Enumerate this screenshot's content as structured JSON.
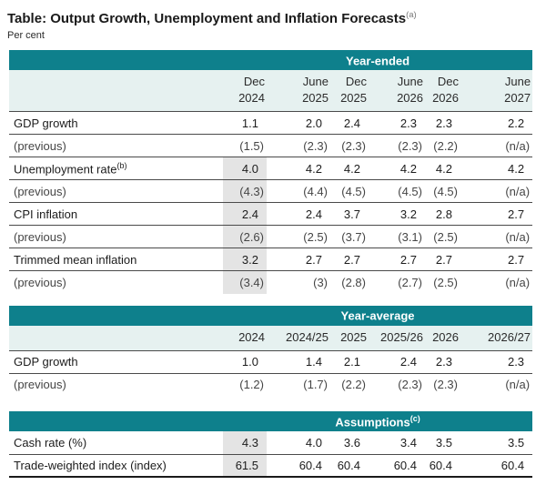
{
  "title": "Table: Output Growth, Unemployment and Inflation Forecasts",
  "title_note": "(a)",
  "subtitle": "Per cent",
  "colors": {
    "teal": "#0E808C",
    "header_row_bg": "#E6F1F0",
    "shaded_cell_bg": "#E4E4E4",
    "rule": "#4A4A4A"
  },
  "tables": [
    {
      "id": "year_ended",
      "header": "Year-ended",
      "header_note": "",
      "columns": [
        [
          "Dec",
          "2024"
        ],
        [
          "June",
          "2025"
        ],
        [
          "Dec",
          "2025"
        ],
        [
          "June",
          "2026"
        ],
        [
          "Dec",
          "2026"
        ],
        [
          "June",
          "2027"
        ]
      ],
      "rows": [
        {
          "label": "GDP growth",
          "note": "",
          "previous": false,
          "shaded_first": false,
          "values": [
            "1.1",
            "2.0",
            "2.4",
            "2.3",
            "2.3",
            "2.2"
          ]
        },
        {
          "label": "(previous)",
          "note": "",
          "previous": true,
          "shaded_first": false,
          "values": [
            "(1.5)",
            "(2.3)",
            "(2.3)",
            "(2.3)",
            "(2.2)",
            "(n/a)"
          ]
        },
        {
          "label": "Unemployment rate",
          "note": "(b)",
          "previous": false,
          "shaded_first": true,
          "values": [
            "4.0",
            "4.2",
            "4.2",
            "4.2",
            "4.2",
            "4.2"
          ]
        },
        {
          "label": "(previous)",
          "note": "",
          "previous": true,
          "shaded_first": true,
          "values": [
            "(4.3)",
            "(4.4)",
            "(4.5)",
            "(4.5)",
            "(4.5)",
            "(n/a)"
          ]
        },
        {
          "label": "CPI inflation",
          "note": "",
          "previous": false,
          "shaded_first": true,
          "values": [
            "2.4",
            "2.4",
            "3.7",
            "3.2",
            "2.8",
            "2.7"
          ]
        },
        {
          "label": "(previous)",
          "note": "",
          "previous": true,
          "shaded_first": true,
          "values": [
            "(2.6)",
            "(2.5)",
            "(3.7)",
            "(3.1)",
            "(2.5)",
            "(n/a)"
          ]
        },
        {
          "label": "Trimmed mean inflation",
          "note": "",
          "previous": false,
          "shaded_first": true,
          "values": [
            "3.2",
            "2.7",
            "2.7",
            "2.7",
            "2.7",
            "2.7"
          ]
        },
        {
          "label": "(previous)",
          "note": "",
          "previous": true,
          "shaded_first": true,
          "values": [
            "(3.4)",
            "(3)",
            "(2.8)",
            "(2.7)",
            "(2.5)",
            "(n/a)"
          ]
        }
      ]
    },
    {
      "id": "year_average",
      "header": "Year-average",
      "header_note": "",
      "columns": [
        [
          "2024"
        ],
        [
          "2024/25"
        ],
        [
          "2025"
        ],
        [
          "2025/26"
        ],
        [
          "2026"
        ],
        [
          "2026/27"
        ]
      ],
      "rows": [
        {
          "label": "GDP growth",
          "note": "",
          "previous": false,
          "shaded_first": false,
          "values": [
            "1.0",
            "1.4",
            "2.1",
            "2.4",
            "2.3",
            "2.3"
          ]
        },
        {
          "label": "(previous)",
          "note": "",
          "previous": true,
          "shaded_first": false,
          "values": [
            "(1.2)",
            "(1.7)",
            "(2.2)",
            "(2.3)",
            "(2.3)",
            "(n/a)"
          ]
        }
      ]
    },
    {
      "id": "assumptions",
      "header": "Assumptions",
      "header_note": "(c)",
      "columns": [],
      "rows": [
        {
          "label": "Cash rate (%)",
          "note": "",
          "previous": false,
          "shaded_first": true,
          "values": [
            "4.3",
            "4.0",
            "3.6",
            "3.4",
            "3.5",
            "3.5"
          ]
        },
        {
          "label": "Trade-weighted index (index)",
          "note": "",
          "previous": false,
          "shaded_first": true,
          "values": [
            "61.5",
            "60.4",
            "60.4",
            "60.4",
            "60.4",
            "60.4"
          ]
        }
      ]
    }
  ]
}
